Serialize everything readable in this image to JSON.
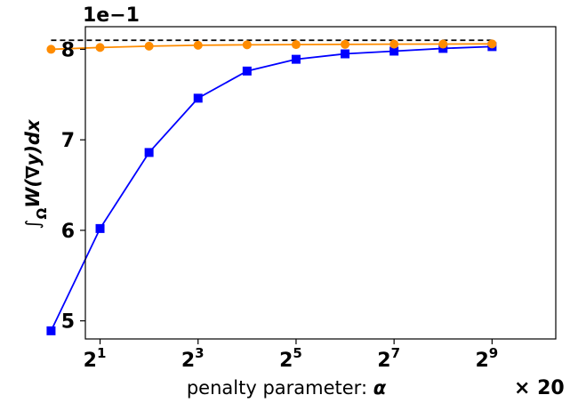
{
  "chart_data": {
    "type": "line",
    "y_offset_label": "1e−1",
    "x_scale_label": "× 20",
    "xlabel_text": "penalty parameter: ",
    "xlabel_symbol": "α",
    "ylabel_int": "∫",
    "ylabel_sub": "Ω",
    "ylabel_expr": "W(∇y)dx",
    "x_scale": "log2",
    "xlim": [
      0.7,
      10.3
    ],
    "ylim": [
      4.8,
      8.25
    ],
    "x_ticks": [
      {
        "exp": 1,
        "base": "2",
        "sup": "1"
      },
      {
        "exp": 3,
        "base": "2",
        "sup": "3"
      },
      {
        "exp": 5,
        "base": "2",
        "sup": "5"
      },
      {
        "exp": 7,
        "base": "2",
        "sup": "7"
      },
      {
        "exp": 9,
        "base": "2",
        "sup": "9"
      }
    ],
    "y_ticks": [
      5,
      6,
      7,
      8
    ],
    "reference_line": {
      "y": 8.1,
      "x_start": 0,
      "x_end": 9,
      "color": "#000000",
      "style": "dashed"
    },
    "series": [
      {
        "color": "#0000ff",
        "marker": "square",
        "x_exp": [
          0,
          1,
          2,
          3,
          4,
          5,
          6,
          7,
          8,
          9
        ],
        "values": [
          4.89,
          6.02,
          6.86,
          7.46,
          7.76,
          7.89,
          7.95,
          7.98,
          8.01,
          8.03
        ]
      },
      {
        "color": "#ff8c00",
        "marker": "circle",
        "x_exp": [
          0,
          1,
          2,
          3,
          4,
          5,
          6,
          7,
          8,
          9
        ],
        "values": [
          8.0,
          8.02,
          8.035,
          8.045,
          8.05,
          8.052,
          8.055,
          8.057,
          8.058,
          8.06
        ]
      }
    ]
  }
}
